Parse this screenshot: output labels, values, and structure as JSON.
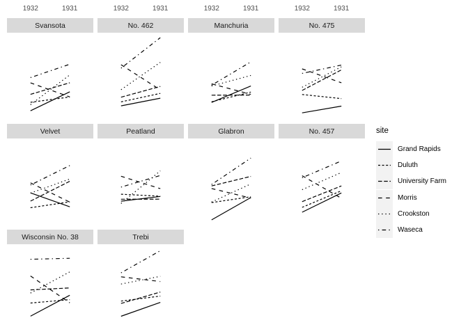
{
  "chart_data": {
    "type": "line",
    "title": "",
    "x_categories": [
      "1932",
      "1931"
    ],
    "facet_variable": "variety",
    "y_domain": [
      11.9,
      67.4
    ],
    "grid": "off",
    "axis_labels_position": "top",
    "legend": {
      "title": "site",
      "position": "right"
    },
    "colors": {
      "line": "#000000",
      "strip_fill": "#d9d9d9",
      "axis_text": "#4d4d4d",
      "legend_key_fill": "#f2f2f2",
      "background": "#ffffff"
    },
    "sites": [
      {
        "name": "Grand Rapids",
        "linetype": "solid"
      },
      {
        "name": "Duluth",
        "linetype": "22"
      },
      {
        "name": "University Farm",
        "linetype": "42"
      },
      {
        "name": "Morris",
        "linetype": "44"
      },
      {
        "name": "Crookston",
        "linetype": "13"
      },
      {
        "name": "Waseca",
        "linetype": "1343"
      }
    ],
    "facets": [
      {
        "variety": "Svansota",
        "values": {
          "Grand Rapids": [
            16.63,
            29.13
          ],
          "Duluth": [
            22.23,
            25.7
          ],
          "University Farm": [
            27.43,
            35.13
          ],
          "Morris": [
            35.03,
            25.76
          ],
          "Crookston": [
            20.63,
            40.28
          ],
          "Waseca": [
            38.5,
            47.33
          ]
        }
      },
      {
        "variety": "No. 462",
        "values": {
          "Grand Rapids": [
            19.9,
            24.93
          ],
          "Duluth": [
            22.5,
            28.1
          ],
          "University Farm": [
            25.56,
            32.67
          ],
          "Morris": [
            47.0,
            30.37
          ],
          "Crookston": [
            30.53,
            48.56
          ],
          "Waseca": [
            44.7,
            64.83
          ]
        }
      },
      {
        "variety": "Manchuria",
        "values": {
          "Grand Rapids": [
            22.13,
            32.96
          ],
          "Duluth": [
            22.56,
            28.96
          ],
          "University Farm": [
            26.9,
            27.0
          ],
          "Morris": [
            34.36,
            27.43
          ],
          "Crookston": [
            32.96,
            39.93
          ],
          "Waseca": [
            33.46,
            48.87
          ]
        }
      },
      {
        "variety": "No. 475",
        "values": {
          "Grand Rapids": [
            15.23,
            19.7
          ],
          "Duluth": [
            27.36,
            24.66
          ],
          "University Farm": [
            30.0,
            43.6
          ],
          "Morris": [
            44.23,
            35.13
          ],
          "Crookston": [
            32.13,
            45.59
          ],
          "Waseca": [
            41.26,
            46.76
          ]
        }
      },
      {
        "variety": "Velvet",
        "values": {
          "Grand Rapids": [
            32.23,
            23.03
          ],
          "Duluth": [
            22.46,
            26.3
          ],
          "University Farm": [
            26.8,
            39.9
          ],
          "Morris": [
            38.83,
            26.13
          ],
          "Crookston": [
            32.06,
            41.33
          ],
          "Waseca": [
            37.4,
            50.23
          ]
        }
      },
      {
        "variety": "Peatland",
        "values": {
          "Grand Rapids": [
            26.76,
            29.86
          ],
          "Duluth": [
            31.36,
            30.0
          ],
          "University Farm": [
            28.06,
            28.07
          ],
          "Morris": [
            43.2,
            35.03
          ],
          "Crookston": [
            25.23,
            46.76
          ],
          "Waseca": [
            36.03,
            43.67
          ]
        }
      },
      {
        "variety": "Glabron",
        "values": {
          "Grand Rapids": [
            14.43,
            29.13
          ],
          "Duluth": [
            25.86,
            29.66
          ],
          "University Farm": [
            36.8,
            43.07
          ],
          "Morris": [
            35.13,
            28.76
          ],
          "Crookston": [
            26.16,
            38.13
          ],
          "Waseca": [
            37.73,
            55.2
          ]
        }
      },
      {
        "variety": "No. 457",
        "values": {
          "Grand Rapids": [
            19.46,
            32.16
          ],
          "Duluth": [
            22.7,
            33.6
          ],
          "University Farm": [
            26.43,
            36.8
          ],
          "Morris": [
            43.53,
            28.7
          ],
          "Crookston": [
            34.33,
            45.67
          ],
          "Waseca": [
            42.2,
            53.27
          ]
        }
      },
      {
        "variety": "Wisconsin No. 38",
        "values": {
          "Grand Rapids": [
            20.66,
            34.46
          ],
          "Duluth": [
            29.33,
            31.6
          ],
          "University Farm": [
            38.0,
            39.3
          ],
          "Morris": [
            47.16,
            29.46
          ],
          "Crookston": [
            35.9,
            49.86
          ],
          "Waseca": [
            58.16,
            58.8
          ]
        }
      },
      {
        "variety": "Trebi",
        "values": {
          "Grand Rapids": [
            20.63,
            29.76
          ],
          "Duluth": [
            30.6,
            33.93
          ],
          "University Farm": [
            29.06,
            36.57
          ],
          "Morris": [
            46.63,
            43.48
          ],
          "Crookston": [
            41.83,
            46.93
          ],
          "Waseca": [
            49.23,
            63.83
          ]
        }
      }
    ]
  }
}
